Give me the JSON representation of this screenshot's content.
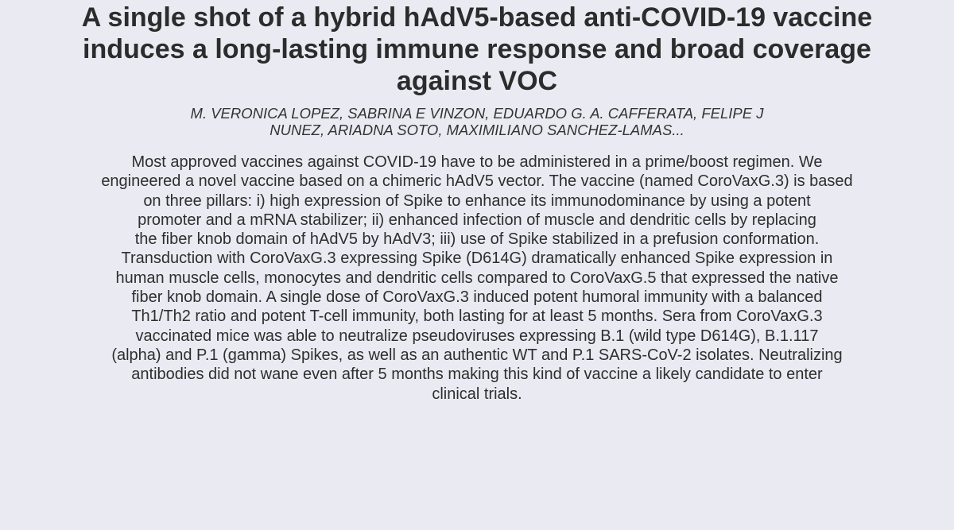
{
  "paper": {
    "title_lines": [
      "A single shot of a hybrid hAdV5-based anti-COVID-19 vaccine",
      "induces a long-lasting immune response and broad coverage",
      "against VOC"
    ],
    "author_lines": [
      "M. VERONICA LOPEZ, SABRINA E VINZON, EDUARDO G. A. CAFFERATA, FELIPE J",
      "NUNEZ, ARIADNA SOTO, MAXIMILIANO SANCHEZ-LAMAS..."
    ],
    "abstract_lines": [
      "Most approved vaccines against COVID-19 have to be administered in a prime/boost regimen. We",
      "engineered a novel vaccine based on a chimeric hAdV5 vector. The vaccine (named CoroVaxG.3) is based",
      "on three pillars: i) high expression of Spike to enhance its immunodominance by using a potent",
      "promoter and a mRNA stabilizer; ii) enhanced infection of muscle and dendritic cells by replacing",
      "the fiber knob domain of hAdV5 by hAdV3; iii) use of Spike stabilized in a prefusion conformation.",
      "Transduction with CoroVaxG.3 expressing Spike (D614G) dramatically enhanced Spike expression in",
      "human muscle cells, monocytes and dendritic cells compared to CoroVaxG.5 that expressed the native",
      "fiber knob domain. A single dose of CoroVaxG.3 induced potent humoral immunity with a balanced",
      "Th1/Th2 ratio and potent T-cell immunity, both lasting for at least 5 months. Sera from CoroVaxG.3",
      "vaccinated mice was able to neutralize pseudoviruses expressing B.1 (wild type D614G), B.1.117",
      "(alpha) and P.1 (gamma) Spikes, as well as an authentic WT and P.1 SARS-CoV-2 isolates. Neutralizing",
      "antibodies did not wane even after 5 months making this kind of vaccine a likely candidate to enter",
      "clinical trials."
    ]
  }
}
